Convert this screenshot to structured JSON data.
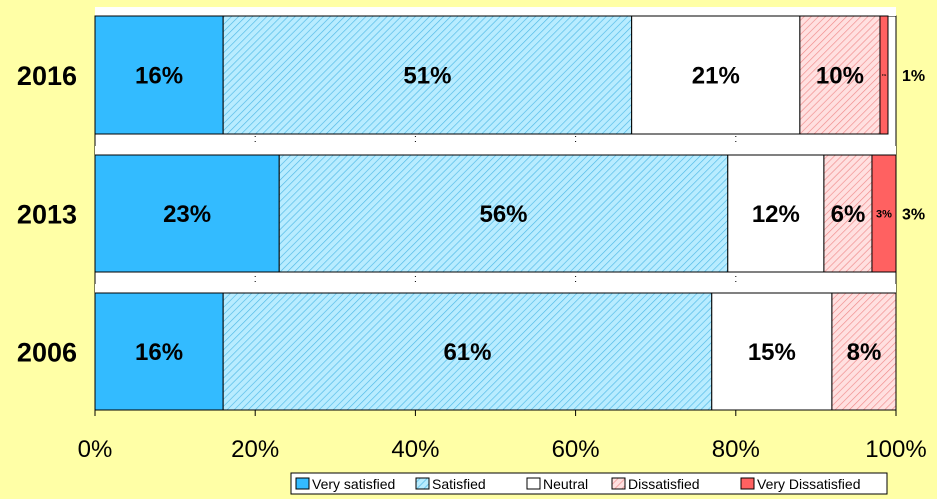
{
  "chart_data": {
    "type": "bar",
    "orientation": "horizontal",
    "stacked": true,
    "categories": [
      "2016",
      "2013",
      "2006"
    ],
    "series": [
      {
        "name": "Very satisfied",
        "values": [
          16,
          23,
          16
        ],
        "color": "#33bbff",
        "pattern": "solid"
      },
      {
        "name": "Satisfied",
        "values": [
          51,
          56,
          61
        ],
        "color": "#a6e6ff",
        "pattern": "hatch-blue"
      },
      {
        "name": "Neutral",
        "values": [
          21,
          12,
          15
        ],
        "color": "#ffffff",
        "pattern": "solid"
      },
      {
        "name": "Dissatisfied",
        "values": [
          10,
          6,
          8
        ],
        "color": "#ffc6c6",
        "pattern": "hatch-pink"
      },
      {
        "name": "Very Dissatisfied",
        "values": [
          1,
          3,
          0
        ],
        "color": "#ff6161",
        "pattern": "solid"
      }
    ],
    "data_labels": [
      [
        "16%",
        "51%",
        "21%",
        "10%",
        "1%"
      ],
      [
        "23%",
        "56%",
        "12%",
        "6%",
        "3%"
      ],
      [
        "16%",
        "61%",
        "15%",
        "8%",
        ""
      ]
    ],
    "outside_labels": [
      "1%",
      "3%",
      ""
    ],
    "xlim": [
      0,
      100
    ],
    "xticks": [
      "0%",
      "20%",
      "40%",
      "60%",
      "80%",
      "100%"
    ],
    "grid": "vertical",
    "legend": {
      "position": "bottom-right",
      "entries": [
        "Very satisfied",
        "Satisfied",
        "Neutral",
        "Dissatisfied",
        "Very Dissatisfied"
      ]
    }
  }
}
